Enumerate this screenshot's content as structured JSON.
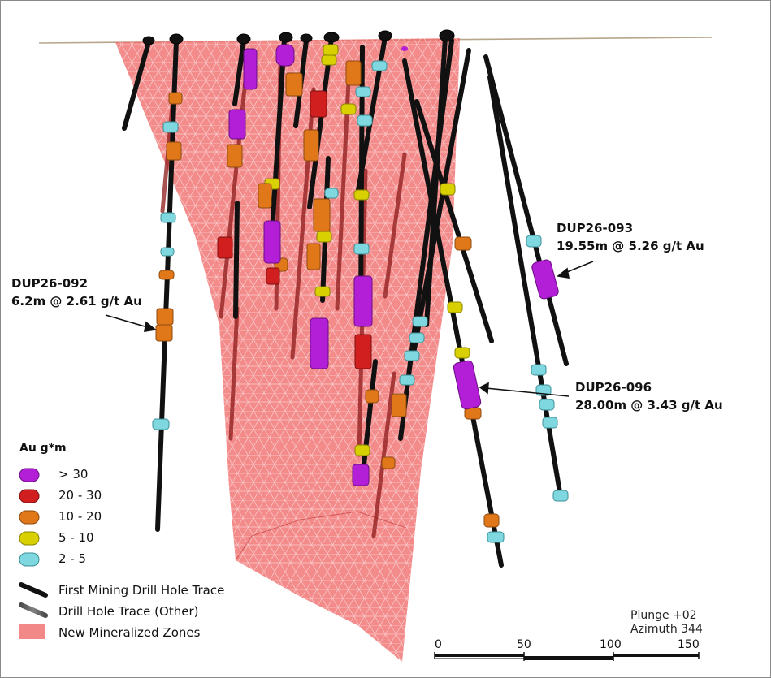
{
  "callouts": [
    {
      "hole": "DUP26-092",
      "intercept": "6.2m @ 2.61 g/t Au"
    },
    {
      "hole": "DUP26-093",
      "intercept": "19.55m @ 5.26 g/t Au"
    },
    {
      "hole": "DUP26-096",
      "intercept": "28.00m @ 3.43 g/t Au"
    }
  ],
  "legend": {
    "title": "Au g*m",
    "grade_classes": [
      {
        "label": "> 30",
        "color": "#b21fd6"
      },
      {
        "label": "20 - 30",
        "color": "#d11f1f"
      },
      {
        "label": "10 - 20",
        "color": "#e0781a"
      },
      {
        "label": "5 - 10",
        "color": "#d8d000"
      },
      {
        "label": "2 - 5",
        "color": "#7fd8e0"
      }
    ],
    "traces": [
      {
        "label": "First Mining Drill Hole Trace"
      },
      {
        "label": "Drill Hole Trace (Other)"
      },
      {
        "label": "New Mineralized Zones"
      }
    ]
  },
  "view": {
    "plunge": "Plunge +02",
    "azimuth": "Azimuth 344"
  },
  "scale_bar": {
    "ticks": [
      "0",
      "50",
      "100",
      "150"
    ]
  },
  "colors": {
    "zone": "#f06a6a",
    "topography": "#b8a68a",
    "first_mining_trace": "#111111"
  }
}
